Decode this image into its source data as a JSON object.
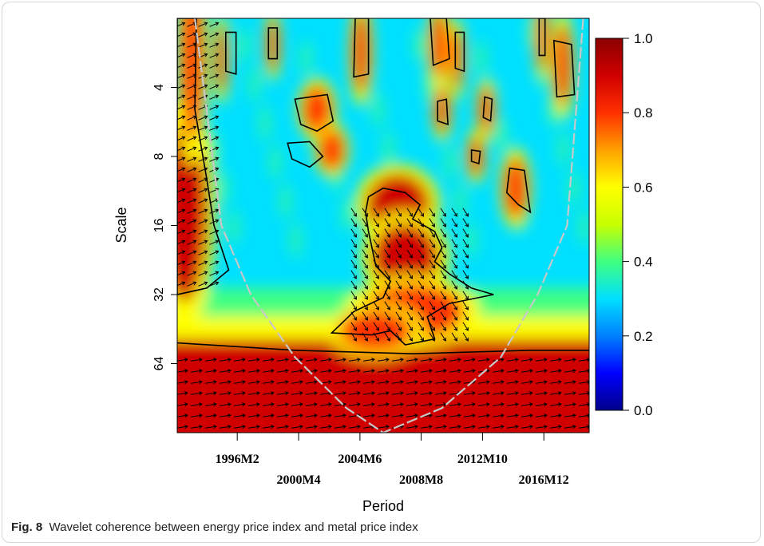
{
  "caption": {
    "label": "Fig. 8",
    "text": "Wavelet coherence between energy price index and metal price index"
  },
  "chart_data": {
    "type": "heatmap",
    "xlabel": "Period",
    "ylabel": "Scale",
    "x_ticks": [
      {
        "value": 1996.08,
        "label": "1996M2",
        "row": 0
      },
      {
        "value": 2000.25,
        "label": "2000M4",
        "row": 1
      },
      {
        "value": 2004.42,
        "label": "2004M6",
        "row": 0
      },
      {
        "value": 2008.58,
        "label": "2008M8",
        "row": 1
      },
      {
        "value": 2012.75,
        "label": "2012M10",
        "row": 0
      },
      {
        "value": 2016.92,
        "label": "2016M12",
        "row": 1
      }
    ],
    "x_range": [
      1992.0,
      2020.0
    ],
    "y_ticks": [
      4,
      8,
      16,
      32,
      64
    ],
    "y_range": [
      2,
      128
    ],
    "y_scale": "log2",
    "y_inverted": true,
    "colorbar": {
      "ticks": [
        "0.0",
        "0.2",
        "0.4",
        "0.6",
        "0.8",
        "1.0"
      ],
      "range": [
        0,
        1
      ],
      "colors": [
        "#00008b",
        "#0000ff",
        "#0080ff",
        "#00e0ff",
        "#40ff80",
        "#c8ff00",
        "#ffff00",
        "#ffa000",
        "#ff3000",
        "#d00000",
        "#8b0000"
      ]
    },
    "background_value": 0.25,
    "high_regions": [
      {
        "x": 1992.5,
        "y": 14,
        "rx": 1.6,
        "ry": 1.3,
        "v": 0.85
      },
      {
        "x": 1993.0,
        "y": 3,
        "rx": 0.8,
        "ry": 1.2,
        "v": 0.8
      },
      {
        "x": 2007.0,
        "y": 13,
        "rx": 2.2,
        "ry": 0.45,
        "v": 0.92
      },
      {
        "x": 2007.5,
        "y": 22,
        "rx": 2.3,
        "ry": 0.5,
        "v": 0.88
      },
      {
        "x": 2008.0,
        "y": 38,
        "rx": 3.5,
        "ry": 0.4,
        "v": 0.75
      },
      {
        "x": 2005.5,
        "y": 46,
        "rx": 2.5,
        "ry": 0.3,
        "v": 0.75
      },
      {
        "x": 2001.5,
        "y": 5,
        "rx": 1.0,
        "ry": 0.35,
        "v": 0.8
      },
      {
        "x": 2002.5,
        "y": 7.5,
        "rx": 0.9,
        "ry": 0.3,
        "v": 0.75
      },
      {
        "x": 2015.0,
        "y": 11,
        "rx": 0.8,
        "ry": 0.45,
        "v": 0.8
      },
      {
        "x": 2013.0,
        "y": 5,
        "rx": 0.5,
        "ry": 0.35,
        "v": 0.75
      },
      {
        "x": 2010.0,
        "y": 5,
        "rx": 0.5,
        "ry": 0.35,
        "v": 0.8
      },
      {
        "x": 2012.3,
        "y": 8,
        "rx": 0.5,
        "ry": 0.3,
        "v": 0.75
      },
      {
        "x": 2018.2,
        "y": 3.2,
        "rx": 0.6,
        "ry": 0.6,
        "v": 0.8
      },
      {
        "x": 2004.5,
        "y": 2.8,
        "rx": 0.6,
        "ry": 0.6,
        "v": 0.8
      },
      {
        "x": 2009.8,
        "y": 2.6,
        "rx": 0.6,
        "ry": 0.5,
        "v": 0.8
      },
      {
        "x": 2016.8,
        "y": 2.4,
        "rx": 0.4,
        "ry": 0.5,
        "v": 0.8
      },
      {
        "x": 1995.0,
        "y": 3,
        "rx": 0.4,
        "ry": 0.5,
        "v": 0.78
      },
      {
        "x": 2011.0,
        "y": 3,
        "rx": 0.4,
        "ry": 0.45,
        "v": 0.75
      },
      {
        "x": 1998.5,
        "y": 2.6,
        "rx": 0.4,
        "ry": 0.4,
        "v": 0.75
      }
    ],
    "high_band": {
      "y_from": 50,
      "y_to": 128,
      "v": 0.87
    },
    "significance_contours": [
      {
        "points": [
          [
            1992.0,
            2.0
          ],
          [
            1993.3,
            2.0
          ],
          [
            1993.2,
            5
          ],
          [
            1994.0,
            10
          ],
          [
            1994.5,
            16
          ],
          [
            1995.5,
            25
          ],
          [
            1994.0,
            30
          ],
          [
            1992.0,
            32
          ]
        ]
      },
      {
        "points": [
          [
            2005.0,
            12
          ],
          [
            2006.0,
            11
          ],
          [
            2007.5,
            11.5
          ],
          [
            2008.5,
            13
          ],
          [
            2008.0,
            15
          ],
          [
            2009.5,
            17
          ],
          [
            2010.0,
            20
          ],
          [
            2009.5,
            23
          ],
          [
            2010.5,
            26
          ],
          [
            2012.0,
            30
          ],
          [
            2013.5,
            32
          ],
          [
            2010.5,
            35
          ],
          [
            2009.0,
            40
          ],
          [
            2009.5,
            50
          ],
          [
            2007.5,
            53
          ],
          [
            2006.5,
            46
          ],
          [
            2005.2,
            48
          ],
          [
            2002.5,
            47
          ],
          [
            2003.3,
            42
          ],
          [
            2004.0,
            38
          ],
          [
            2006.0,
            33
          ],
          [
            2006.5,
            28
          ],
          [
            2005.5,
            24
          ],
          [
            2005.0,
            17
          ],
          [
            2004.8,
            14
          ]
        ]
      },
      {
        "points": [
          [
            1992.0,
            52
          ],
          [
            2000.0,
            56
          ],
          [
            2008.0,
            58
          ],
          [
            2012.0,
            57
          ],
          [
            2016.0,
            56
          ],
          [
            2020.0,
            56
          ]
        ]
      },
      {
        "points": [
          [
            2000.0,
            4.5
          ],
          [
            2002.2,
            4.3
          ],
          [
            2002.6,
            5.6
          ],
          [
            2001.5,
            6.2
          ],
          [
            2000.4,
            5.8
          ]
        ]
      },
      {
        "points": [
          [
            1999.5,
            7.0
          ],
          [
            2001.0,
            6.9
          ],
          [
            2001.9,
            8.0
          ],
          [
            2001.0,
            8.9
          ],
          [
            1999.8,
            8.2
          ]
        ]
      },
      {
        "points": [
          [
            2014.6,
            9.0
          ],
          [
            2015.6,
            9.2
          ],
          [
            2015.8,
            11.5
          ],
          [
            2016.0,
            14.0
          ],
          [
            2015.2,
            13.0
          ],
          [
            2014.4,
            11.5
          ]
        ]
      },
      {
        "points": [
          [
            2009.7,
            4.6
          ],
          [
            2010.3,
            4.5
          ],
          [
            2010.4,
            5.8
          ],
          [
            2009.7,
            5.6
          ]
        ]
      },
      {
        "points": [
          [
            2012.9,
            4.4
          ],
          [
            2013.4,
            4.5
          ],
          [
            2013.3,
            5.6
          ],
          [
            2012.8,
            5.4
          ]
        ]
      },
      {
        "points": [
          [
            2012.0,
            7.5
          ],
          [
            2012.6,
            7.6
          ],
          [
            2012.5,
            8.6
          ],
          [
            2012.0,
            8.4
          ]
        ]
      },
      {
        "points": [
          [
            2017.6,
            2.5
          ],
          [
            2018.8,
            2.6
          ],
          [
            2019.0,
            4.3
          ],
          [
            2017.8,
            4.4
          ]
        ]
      },
      {
        "points": [
          [
            2004.1,
            2.0
          ],
          [
            2005.0,
            2.0
          ],
          [
            2005.0,
            3.5
          ],
          [
            2004.0,
            3.6
          ]
        ]
      },
      {
        "points": [
          [
            2009.2,
            2.0
          ],
          [
            2010.3,
            2.0
          ],
          [
            2010.5,
            3.0
          ],
          [
            2009.4,
            3.2
          ]
        ]
      },
      {
        "points": [
          [
            1995.3,
            2.3
          ],
          [
            1996.0,
            2.3
          ],
          [
            1996.0,
            3.5
          ],
          [
            1995.3,
            3.4
          ]
        ]
      },
      {
        "points": [
          [
            2016.6,
            2.0
          ],
          [
            2017.0,
            2.0
          ],
          [
            2017.0,
            2.9
          ],
          [
            2016.6,
            2.9
          ]
        ]
      },
      {
        "points": [
          [
            1998.2,
            2.2
          ],
          [
            1998.8,
            2.2
          ],
          [
            1998.8,
            3.0
          ],
          [
            1998.2,
            3.0
          ]
        ]
      },
      {
        "points": [
          [
            2010.9,
            2.3
          ],
          [
            2011.5,
            2.3
          ],
          [
            2011.5,
            3.4
          ],
          [
            2010.9,
            3.3
          ]
        ]
      }
    ],
    "cone_of_influence": {
      "points": [
        [
          1993.2,
          2.0
        ],
        [
          1995.0,
          16
        ],
        [
          1997.0,
          32
        ],
        [
          2000.0,
          60
        ],
        [
          2003.5,
          100
        ],
        [
          2006.0,
          128
        ],
        [
          2010.0,
          100
        ],
        [
          2014.0,
          60
        ],
        [
          2016.5,
          32
        ],
        [
          2018.5,
          16
        ],
        [
          2019.6,
          2.0
        ]
      ],
      "color": "#c8c8c8"
    }
  }
}
